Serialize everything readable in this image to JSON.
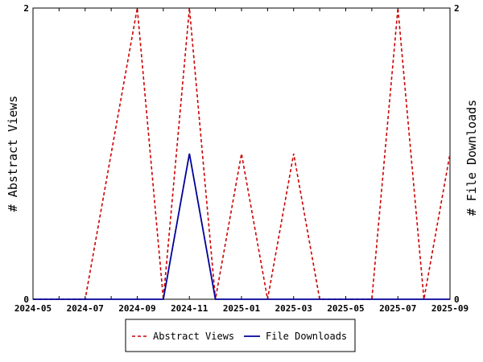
{
  "chart_data": {
    "type": "line",
    "x": [
      "2024-05",
      "2024-06",
      "2024-07",
      "2024-08",
      "2024-09",
      "2024-10",
      "2024-11",
      "2024-12",
      "2025-01",
      "2025-02",
      "2025-03",
      "2025-04",
      "2025-05",
      "2025-06",
      "2025-07",
      "2025-08",
      "2025-09"
    ],
    "x_tick_labels": [
      "2024-05",
      "2024-07",
      "2024-09",
      "2024-11",
      "2025-01",
      "2025-03",
      "2025-05",
      "2025-07",
      "2025-09"
    ],
    "series": [
      {
        "name": "Abstract Views",
        "axis": "left",
        "color": "#cc0000",
        "dash": "dashed",
        "values": [
          0,
          0,
          0,
          1,
          2,
          0,
          2,
          0,
          1,
          0,
          1,
          0,
          0,
          0,
          2,
          0,
          1
        ]
      },
      {
        "name": "File Downloads",
        "axis": "right",
        "color": "#000099",
        "dash": "solid",
        "values": [
          0,
          0,
          0,
          0,
          0,
          0,
          1,
          0,
          0,
          0,
          0,
          0,
          0,
          0,
          0,
          0,
          0
        ]
      }
    ],
    "ylabel": "# Abstract Views",
    "y2label": "# File Downloads",
    "ylim": [
      0,
      2
    ],
    "y2lim": [
      0,
      2
    ],
    "y_tick_labels": [
      "0",
      "2"
    ],
    "y2_tick_labels": [
      "0",
      "2"
    ],
    "grid": false,
    "legend_position": "bottom-center"
  }
}
